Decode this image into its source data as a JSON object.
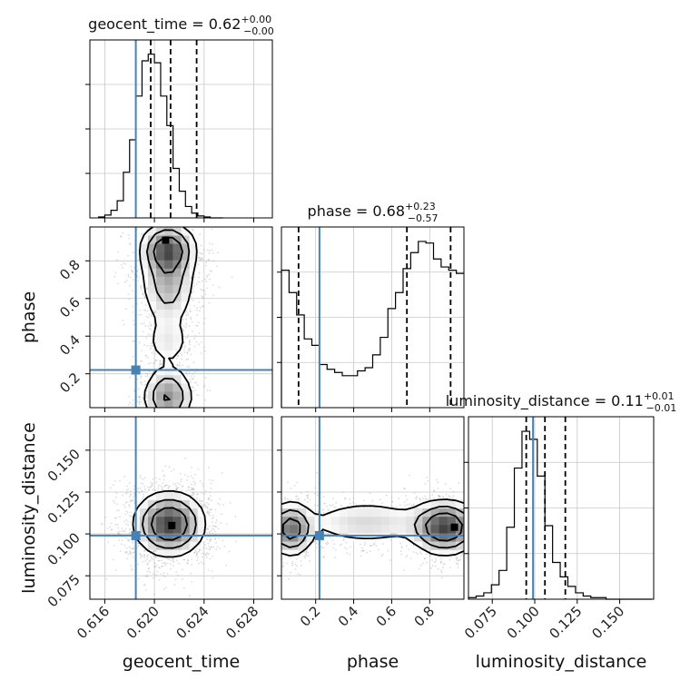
{
  "chart_data": {
    "type": "corner",
    "colors": {
      "truth": "#4682b4",
      "hist": "#000000",
      "grid": "#c8c8c8",
      "points": "#9a9a9a"
    },
    "grid": true,
    "parameters": [
      {
        "name": "geocent_time",
        "label": "geocent_time",
        "range": [
          0.6148,
          0.6295
        ],
        "truth": 0.6185,
        "quantiles": [
          0.6197,
          0.6213,
          0.6234
        ],
        "ticks": [
          0.616,
          0.62,
          0.624,
          0.628
        ],
        "tick_labels": [
          "0.616",
          "0.620",
          "0.624",
          "0.628"
        ],
        "title_main": "geocent_time = 0.62",
        "title_plus": "+0.00",
        "title_minus": "−0.00"
      },
      {
        "name": "phase",
        "label": "phase",
        "range": [
          0.02,
          0.98
        ],
        "truth": 0.22,
        "quantiles": [
          0.11,
          0.68,
          0.91
        ],
        "ticks": [
          0.2,
          0.4,
          0.6,
          0.8
        ],
        "tick_labels": [
          "0.2",
          "0.4",
          "0.6",
          "0.8"
        ],
        "title_main": "phase = 0.68",
        "title_plus": "+0.23",
        "title_minus": "−0.57"
      },
      {
        "name": "luminosity_distance",
        "label": "luminosity_distance",
        "range": [
          0.061,
          0.17
        ],
        "truth": 0.099,
        "quantiles": [
          0.095,
          0.106,
          0.118
        ],
        "ticks": [
          0.075,
          0.1,
          0.125,
          0.15
        ],
        "tick_labels": [
          "0.075",
          "0.100",
          "0.125",
          "0.150"
        ],
        "title_main": "luminosity_distance = 0.11",
        "title_plus": "+0.01",
        "title_minus": "−0.01"
      }
    ],
    "histograms": [
      {
        "parameter": "geocent_time",
        "bin_start": 0.6155,
        "bin_width": 0.0005,
        "counts": [
          1,
          3,
          8,
          18,
          48,
          82,
          128,
          165,
          172,
          163,
          128,
          97,
          52,
          28,
          12,
          5,
          2,
          1,
          0,
          0
        ]
      },
      {
        "parameter": "phase",
        "bin_start": 0.02,
        "bin_width": 0.04,
        "counts": [
          86,
          72,
          58,
          43,
          39,
          27,
          24,
          22,
          20,
          20,
          23,
          25,
          33,
          44,
          62,
          72,
          87,
          97,
          104,
          103,
          93,
          88,
          86,
          84
        ]
      },
      {
        "parameter": "luminosity_distance",
        "bin_start": 0.061,
        "bin_width": 0.0045,
        "counts": [
          1,
          2,
          4,
          9,
          18,
          45,
          82,
          105,
          100,
          77,
          46,
          23,
          14,
          8,
          4,
          2,
          1,
          1,
          0,
          0,
          0,
          0,
          0,
          0
        ]
      }
    ],
    "pairs": [
      {
        "x": "geocent_time",
        "y": "phase",
        "blobs": [
          {
            "cx": 0.6211,
            "cy": 0.86,
            "sx": 0.0011,
            "sy": 0.07,
            "w": 1.0
          },
          {
            "cx": 0.6211,
            "cy": 0.68,
            "sx": 0.0011,
            "sy": 0.12,
            "w": 0.55
          },
          {
            "cx": 0.6211,
            "cy": 0.37,
            "sx": 0.001,
            "sy": 0.07,
            "w": 0.25
          },
          {
            "cx": 0.6211,
            "cy": 0.08,
            "sx": 0.001,
            "sy": 0.08,
            "w": 0.75
          }
        ],
        "peak": [
          0.6209,
          0.91
        ]
      },
      {
        "x": "geocent_time",
        "y": "luminosity_distance",
        "blobs": [
          {
            "cx": 0.6212,
            "cy": 0.106,
            "sx": 0.0014,
            "sy": 0.0095,
            "w": 1.0
          }
        ],
        "peak": [
          0.6214,
          0.105
        ]
      },
      {
        "x": "phase",
        "y": "luminosity_distance",
        "blobs": [
          {
            "cx": 0.07,
            "cy": 0.103,
            "sx": 0.06,
            "sy": 0.008,
            "w": 0.8
          },
          {
            "cx": 0.47,
            "cy": 0.107,
            "sx": 0.18,
            "sy": 0.007,
            "w": 0.3
          },
          {
            "cx": 0.88,
            "cy": 0.104,
            "sx": 0.09,
            "sy": 0.008,
            "w": 1.0
          }
        ],
        "peak": [
          0.93,
          0.104
        ]
      }
    ]
  }
}
